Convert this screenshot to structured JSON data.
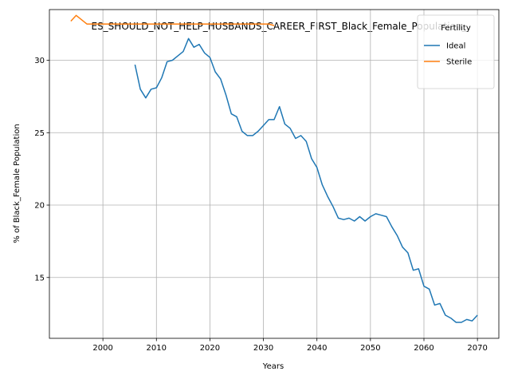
{
  "chart_data": {
    "type": "line",
    "title": "ES_SHOULD_NOT_HELP_HUSBANDS_CAREER_FIRST_Black_Female_Population_",
    "xlabel": "Years",
    "ylabel": "% of Black_Female Population",
    "xlim": [
      1990,
      2074
    ],
    "ylim": [
      10.8,
      33.5
    ],
    "xticks": [
      2000,
      2010,
      2020,
      2030,
      2040,
      2050,
      2060,
      2070
    ],
    "yticks": [
      15,
      20,
      25,
      30
    ],
    "grid": true,
    "legend": {
      "title": "Fertility",
      "placement": "top-right"
    },
    "series": [
      {
        "name": "Ideal",
        "color": "#1f77b4",
        "x": [
          2006,
          2007,
          2008,
          2009,
          2010,
          2011,
          2012,
          2013,
          2014,
          2015,
          2016,
          2017,
          2018,
          2019,
          2020,
          2021,
          2022,
          2023,
          2024,
          2025,
          2026,
          2027,
          2028,
          2029,
          2030,
          2031,
          2032,
          2033,
          2034,
          2035,
          2036,
          2037,
          2038,
          2039,
          2040,
          2041,
          2042,
          2043,
          2044,
          2045,
          2046,
          2047,
          2048,
          2049,
          2050,
          2051,
          2052,
          2053,
          2054,
          2055,
          2056,
          2057,
          2058,
          2059,
          2060,
          2061,
          2062,
          2063,
          2064,
          2065,
          2066,
          2067,
          2068,
          2069,
          2070
        ],
        "y": [
          29.7,
          28.0,
          27.4,
          28.0,
          28.1,
          28.8,
          29.9,
          30.0,
          30.3,
          30.6,
          31.5,
          30.9,
          31.1,
          30.5,
          30.2,
          29.2,
          28.7,
          27.6,
          26.3,
          26.1,
          25.1,
          24.8,
          24.8,
          25.1,
          25.5,
          25.9,
          25.9,
          26.8,
          25.6,
          25.3,
          24.6,
          24.8,
          24.4,
          23.2,
          22.6,
          21.4,
          20.6,
          19.9,
          19.1,
          19.0,
          19.1,
          18.9,
          19.2,
          18.9,
          19.2,
          19.4,
          19.3,
          19.2,
          18.5,
          17.9,
          17.1,
          16.7,
          15.5,
          15.6,
          14.4,
          14.2,
          13.1,
          13.2,
          12.4,
          12.2,
          11.9,
          11.9,
          12.1,
          12.0,
          12.4
        ]
      },
      {
        "name": "Sterile",
        "color": "#ff7f0e",
        "x": [
          1994,
          1995,
          1996,
          1997,
          1998,
          2000,
          2005,
          2010,
          2015,
          2020,
          2025,
          2030,
          2031,
          2032
        ],
        "y": [
          32.7,
          33.1,
          32.8,
          32.5,
          32.5,
          32.5,
          32.5,
          32.5,
          32.5,
          32.5,
          32.5,
          32.5,
          32.5,
          32.4
        ]
      }
    ]
  }
}
